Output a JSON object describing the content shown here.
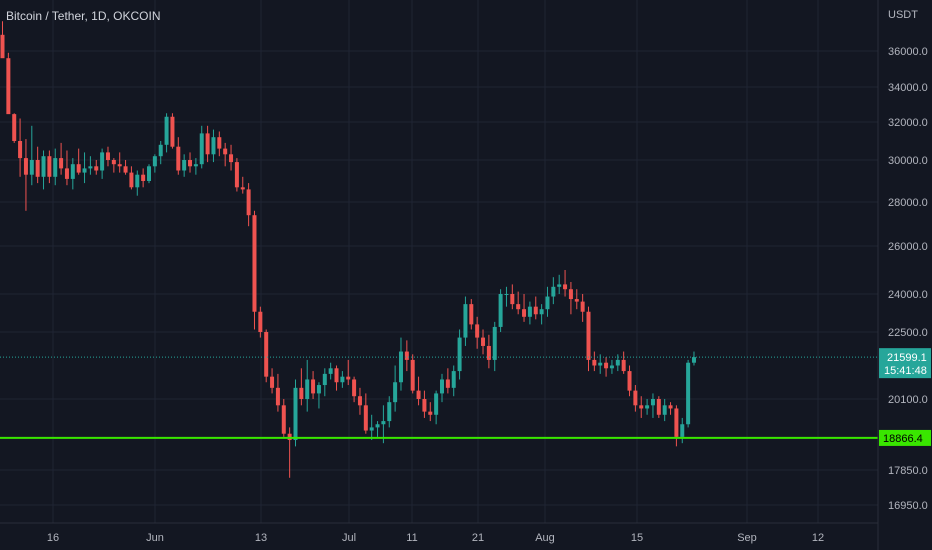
{
  "chart_data": {
    "type": "candlestick",
    "title": "Bitcoin / Tether, 1D, OKCOIN",
    "currency": "USDT",
    "y_axis": {
      "ticks": [
        "36000.0",
        "34000.0",
        "32000.0",
        "30000.0",
        "28000.0",
        "26000.0",
        "24000.0",
        "22500.0",
        "20100.0",
        "17850.0",
        "16950.0"
      ]
    },
    "x_axis": {
      "ticks": [
        "16",
        "Jun",
        "13",
        "Jul",
        "11",
        "21",
        "Aug",
        "15",
        "Sep",
        "12"
      ]
    },
    "last_price": {
      "value": "21599.1",
      "countdown": "15:41:48",
      "color": "#26a69a"
    },
    "support_line": {
      "value": "18866.4",
      "color": "#39e600"
    },
    "colors": {
      "up": "#26a69a",
      "down": "#ef5350",
      "background": "#131722",
      "grid": "#1f2433",
      "text": "#b2b5be"
    },
    "grid": true,
    "candles": [
      [
        36900,
        37650,
        35800,
        35600
      ],
      [
        35600,
        35900,
        32500,
        32450
      ],
      [
        32450,
        32500,
        30900,
        31000
      ],
      [
        31000,
        32200,
        29200,
        30100
      ],
      [
        30100,
        31100,
        27600,
        29300
      ],
      [
        29300,
        31800,
        28800,
        30000
      ],
      [
        30000,
        30700,
        28900,
        29200
      ],
      [
        29200,
        30500,
        28600,
        30200
      ],
      [
        30200,
        30500,
        28900,
        29200
      ],
      [
        29200,
        30600,
        28800,
        30100
      ],
      [
        30100,
        30900,
        29300,
        29600
      ],
      [
        29600,
        30500,
        28800,
        29100
      ],
      [
        29100,
        30100,
        28600,
        29800
      ],
      [
        29800,
        30600,
        29300,
        29400
      ],
      [
        29400,
        30400,
        28900,
        29600
      ],
      [
        29600,
        30200,
        29300,
        29700
      ],
      [
        29700,
        30000,
        29300,
        29500
      ],
      [
        29500,
        30600,
        29100,
        30400
      ],
      [
        30400,
        30700,
        29700,
        30000
      ],
      [
        30000,
        30100,
        29400,
        29800
      ],
      [
        29800,
        30400,
        29400,
        29700
      ],
      [
        29700,
        30000,
        29300,
        29400
      ],
      [
        29400,
        29700,
        28600,
        28700
      ],
      [
        28700,
        29500,
        28300,
        29300
      ],
      [
        29300,
        29600,
        28700,
        29000
      ],
      [
        29000,
        29800,
        28900,
        29700
      ],
      [
        29700,
        30300,
        29400,
        30200
      ],
      [
        30200,
        31000,
        29800,
        30800
      ],
      [
        30800,
        32500,
        30400,
        32300
      ],
      [
        32300,
        32500,
        30600,
        30700
      ],
      [
        30700,
        31200,
        29300,
        29500
      ],
      [
        29500,
        30300,
        29200,
        30000
      ],
      [
        30000,
        30400,
        29400,
        29700
      ],
      [
        29700,
        30100,
        29300,
        29800
      ],
      [
        29800,
        31800,
        29600,
        31400
      ],
      [
        31400,
        31800,
        29900,
        30300
      ],
      [
        30300,
        31600,
        29900,
        31200
      ],
      [
        31200,
        31500,
        30200,
        30600
      ],
      [
        30600,
        30900,
        29700,
        30300
      ],
      [
        30300,
        30800,
        29500,
        29900
      ],
      [
        29900,
        30100,
        28500,
        28700
      ],
      [
        28700,
        29200,
        28400,
        28600
      ],
      [
        28600,
        28900,
        26900,
        27400
      ],
      [
        27400,
        27600,
        22600,
        23300
      ],
      [
        23300,
        23500,
        22300,
        22500
      ],
      [
        22500,
        22600,
        20700,
        20900
      ],
      [
        20900,
        21200,
        20300,
        20500
      ],
      [
        20500,
        21000,
        19700,
        19900
      ],
      [
        19900,
        20100,
        18900,
        19000
      ],
      [
        19000,
        19200,
        17650,
        18800
      ],
      [
        18800,
        20800,
        18600,
        20500
      ],
      [
        20500,
        21200,
        19900,
        20100
      ],
      [
        20100,
        21500,
        19700,
        20800
      ],
      [
        20800,
        21100,
        20100,
        20300
      ],
      [
        20300,
        20700,
        19800,
        20600
      ],
      [
        20600,
        21200,
        20200,
        21000
      ],
      [
        21000,
        21400,
        20800,
        21200
      ],
      [
        21200,
        21300,
        20400,
        20700
      ],
      [
        20700,
        21100,
        20500,
        20900
      ],
      [
        20900,
        21500,
        20600,
        20800
      ],
      [
        20800,
        20900,
        20000,
        20200
      ],
      [
        20200,
        20500,
        19600,
        19900
      ],
      [
        19900,
        20300,
        19000,
        19100
      ],
      [
        19100,
        19600,
        18800,
        19200
      ],
      [
        19200,
        19400,
        18900,
        19300
      ],
      [
        19300,
        19900,
        18700,
        19400
      ],
      [
        19400,
        20200,
        19200,
        20000
      ],
      [
        20000,
        21300,
        19700,
        20700
      ],
      [
        20700,
        22300,
        20400,
        21800
      ],
      [
        21800,
        22200,
        21100,
        21500
      ],
      [
        21500,
        21700,
        20300,
        20400
      ],
      [
        20400,
        20900,
        19900,
        20100
      ],
      [
        20100,
        20400,
        19500,
        19700
      ],
      [
        19700,
        20000,
        19400,
        19600
      ],
      [
        19600,
        20400,
        19300,
        20300
      ],
      [
        20300,
        21000,
        20000,
        20800
      ],
      [
        20800,
        21200,
        20300,
        20500
      ],
      [
        20500,
        21300,
        20200,
        21100
      ],
      [
        21100,
        22600,
        20800,
        22300
      ],
      [
        22300,
        23900,
        22000,
        23600
      ],
      [
        23600,
        23800,
        22600,
        22800
      ],
      [
        22800,
        23100,
        21900,
        22300
      ],
      [
        22300,
        22600,
        21700,
        22000
      ],
      [
        22000,
        22400,
        21200,
        21500
      ],
      [
        21500,
        22900,
        21100,
        22700
      ],
      [
        22700,
        24200,
        22500,
        24000
      ],
      [
        24000,
        24300,
        23500,
        24000
      ],
      [
        24000,
        24400,
        23400,
        23600
      ],
      [
        23600,
        24100,
        23200,
        23400
      ],
      [
        23400,
        24000,
        22900,
        23100
      ],
      [
        23100,
        23700,
        22800,
        23500
      ],
      [
        23500,
        23900,
        23000,
        23200
      ],
      [
        23200,
        23600,
        22800,
        23400
      ],
      [
        23400,
        24300,
        23100,
        23900
      ],
      [
        23900,
        24700,
        23600,
        24300
      ],
      [
        24300,
        24800,
        24000,
        24400
      ],
      [
        24400,
        25000,
        23900,
        24200
      ],
      [
        24200,
        24500,
        23200,
        23800
      ],
      [
        23800,
        24200,
        23400,
        23700
      ],
      [
        23700,
        24000,
        22900,
        23300
      ],
      [
        23300,
        23500,
        21100,
        21500
      ],
      [
        21500,
        21800,
        21100,
        21300
      ],
      [
        21300,
        21700,
        21000,
        21400
      ],
      [
        21400,
        21600,
        20900,
        21200
      ],
      [
        21200,
        21500,
        21000,
        21300
      ],
      [
        21300,
        21700,
        21100,
        21500
      ],
      [
        21500,
        21800,
        21000,
        21100
      ],
      [
        21100,
        21300,
        20200,
        20400
      ],
      [
        20400,
        20600,
        19700,
        19900
      ],
      [
        19900,
        20200,
        19500,
        19800
      ],
      [
        19800,
        20100,
        19600,
        19900
      ],
      [
        19900,
        20300,
        19500,
        20100
      ],
      [
        20100,
        20200,
        19500,
        19600
      ],
      [
        19600,
        20100,
        19400,
        19900
      ],
      [
        19900,
        20000,
        19600,
        19800
      ],
      [
        19800,
        19900,
        18600,
        18900
      ],
      [
        18900,
        19500,
        18700,
        19300
      ],
      [
        19300,
        21500,
        19200,
        21400
      ],
      [
        21400,
        21800,
        21300,
        21600
      ]
    ]
  }
}
